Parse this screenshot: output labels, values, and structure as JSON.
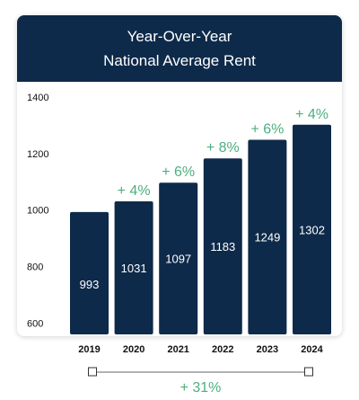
{
  "chart_data": {
    "type": "bar",
    "title": "Year-Over-Year",
    "subtitle": "National Average Rent",
    "categories": [
      "2019",
      "2020",
      "2021",
      "2022",
      "2023",
      "2024"
    ],
    "values": [
      993,
      1031,
      1097,
      1183,
      1249,
      1302
    ],
    "value_labels": [
      "993",
      "1031",
      "1097",
      "1183",
      "1249",
      "1302"
    ],
    "changes": [
      "",
      "+ 4%",
      "+ 6%",
      "+ 8%",
      "+ 6%",
      "+ 4%"
    ],
    "ylim": [
      560,
      1400
    ],
    "yticks": [
      600,
      800,
      1000,
      1200,
      1400
    ],
    "ytick_labels": [
      "600",
      "800",
      "1000",
      "1200",
      "1400"
    ],
    "total_change": "+ 31%",
    "colors": {
      "bar": "#0e2a4a",
      "header": "#0e2a4a",
      "change": "#4caf7d"
    }
  }
}
